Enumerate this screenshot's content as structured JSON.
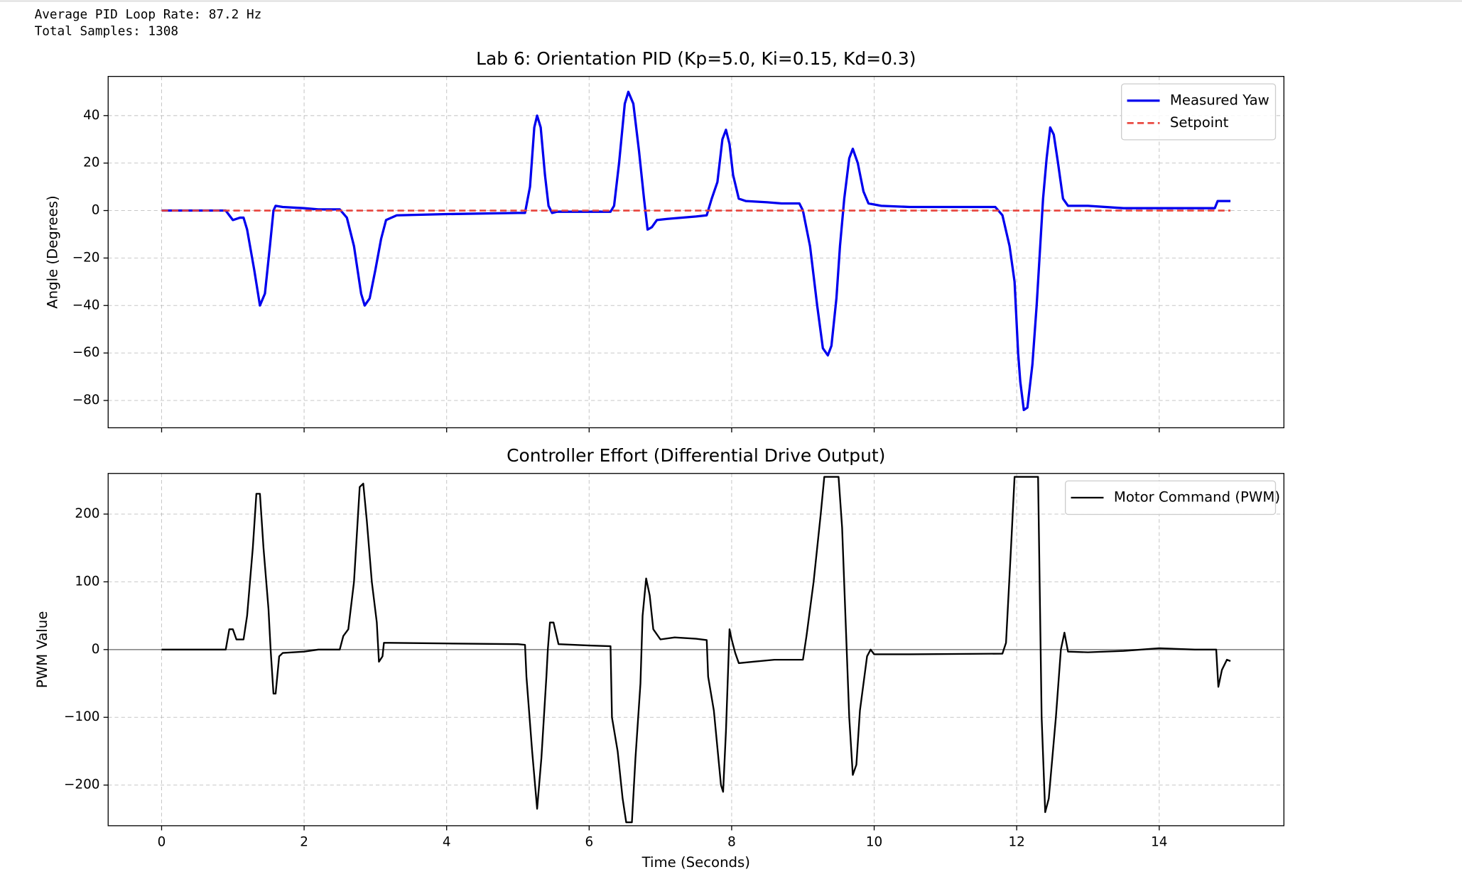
{
  "console": [
    "Average PID Loop Rate: 87.2 Hz",
    "Total Samples: 1308"
  ],
  "chart_data": [
    {
      "type": "line",
      "title": "Lab 6: Orientation PID (Kp=5.0, Ki=0.15, Kd=0.3)",
      "y_label": "Angle (Degrees)",
      "xlim": [
        -0.75,
        15.75
      ],
      "xticks": [
        0,
        2,
        4,
        6,
        8,
        10,
        12,
        14
      ],
      "show_xtick_labels": false,
      "ylim": [
        -91.5,
        56.5
      ],
      "yticks": [
        {
          "value": -80,
          "label": "−80"
        },
        {
          "value": -60,
          "label": "−60"
        },
        {
          "value": -40,
          "label": "−40"
        },
        {
          "value": -20,
          "label": "−20"
        },
        0,
        20,
        40
      ],
      "grid": true,
      "legend": "upper right",
      "series": [
        {
          "name": "Measured Yaw",
          "color": "#0000ee",
          "width": 2.5,
          "dash": false,
          "x": [
            0,
            0.9,
            0.95,
            1.0,
            1.1,
            1.15,
            1.2,
            1.3,
            1.38,
            1.45,
            1.52,
            1.57,
            1.6,
            1.7,
            2.0,
            2.2,
            2.5,
            2.6,
            2.7,
            2.8,
            2.85,
            2.92,
            3.0,
            3.08,
            3.15,
            3.3,
            4,
            5,
            5.1,
            5.17,
            5.23,
            5.27,
            5.32,
            5.38,
            5.43,
            5.48,
            5.55,
            6,
            6.3,
            6.35,
            6.42,
            6.5,
            6.55,
            6.62,
            6.7,
            6.77,
            6.82,
            6.88,
            6.95,
            7.1,
            7.5,
            7.65,
            7.72,
            7.8,
            7.87,
            7.92,
            7.97,
            8.02,
            8.1,
            8.2,
            8.5,
            8.7,
            8.95,
            9.0,
            9.1,
            9.2,
            9.28,
            9.35,
            9.4,
            9.47,
            9.52,
            9.58,
            9.65,
            9.7,
            9.77,
            9.85,
            9.92,
            10.1,
            10.5,
            11.7,
            11.8,
            11.9,
            11.97,
            12.02,
            12.05,
            12.1,
            12.15,
            12.22,
            12.28,
            12.33,
            12.37,
            12.42,
            12.47,
            12.52,
            12.58,
            12.65,
            12.72,
            13,
            13.5,
            14,
            14.5,
            14.78,
            14.82,
            14.9,
            15
          ],
          "values": [
            0,
            0,
            -2,
            -4,
            -3,
            -3,
            -8,
            -25,
            -40,
            -35,
            -15,
            0,
            2,
            1.5,
            1,
            0.5,
            0.5,
            -3,
            -15,
            -35,
            -40,
            -37,
            -25,
            -12,
            -4,
            -2,
            -1.5,
            -1,
            -1,
            10,
            35,
            40,
            35,
            15,
            2,
            -1,
            -0.5,
            -0.5,
            -0.5,
            2,
            20,
            45,
            50,
            45,
            25,
            5,
            -8,
            -7,
            -4,
            -3.5,
            -2.5,
            -2,
            5,
            12,
            30,
            34,
            28,
            15,
            5,
            4,
            3.5,
            3,
            3,
            0,
            -15,
            -40,
            -58,
            -61,
            -57,
            -37,
            -15,
            5,
            22,
            26,
            20,
            8,
            3,
            2,
            1.5,
            1.5,
            -2,
            -15,
            -30,
            -60,
            -72,
            -84,
            -83,
            -65,
            -40,
            -15,
            5,
            22,
            35,
            32,
            20,
            5,
            2,
            2,
            1,
            1,
            1,
            1,
            4,
            4,
            4
          ]
        },
        {
          "name": "Setpoint",
          "color": "#e8423a",
          "width": 2,
          "dash": true,
          "x": [
            0,
            15
          ],
          "values": [
            0,
            0
          ]
        }
      ]
    },
    {
      "type": "line",
      "title": "Controller Effort (Differential Drive Output)",
      "y_label": "PWM Value",
      "x_label": "Time (Seconds)",
      "xlim": [
        -0.75,
        15.75
      ],
      "xticks": [
        0,
        2,
        4,
        6,
        8,
        10,
        12,
        14
      ],
      "show_xtick_labels": true,
      "ylim": [
        -260,
        260
      ],
      "yticks": [
        {
          "value": -200,
          "label": "−200"
        },
        {
          "value": -100,
          "label": "−100"
        },
        0,
        100,
        200
      ],
      "grid": true,
      "legend": "upper right",
      "reference_line": 0,
      "series": [
        {
          "name": "Motor Command (PWM)",
          "color": "#000000",
          "width": 1.8,
          "dash": false,
          "x": [
            0,
            0.9,
            0.95,
            1.0,
            1.05,
            1.15,
            1.2,
            1.28,
            1.33,
            1.38,
            1.43,
            1.5,
            1.53,
            1.57,
            1.6,
            1.65,
            1.7,
            2.0,
            2.2,
            2.5,
            2.55,
            2.62,
            2.7,
            2.78,
            2.83,
            2.88,
            2.95,
            3.02,
            3.05,
            3.1,
            3.12,
            3.2,
            4,
            5,
            5.1,
            5.12,
            5.2,
            5.27,
            5.33,
            5.4,
            5.42,
            5.45,
            5.5,
            5.57,
            6,
            6.3,
            6.32,
            6.4,
            6.47,
            6.52,
            6.6,
            6.65,
            6.72,
            6.75,
            6.8,
            6.85,
            6.9,
            7.0,
            7.2,
            7.5,
            7.65,
            7.67,
            7.75,
            7.85,
            7.88,
            7.92,
            7.97,
            8.0,
            8.05,
            8.1,
            8.3,
            8.6,
            9.0,
            9.05,
            9.15,
            9.25,
            9.3,
            9.5,
            9.55,
            9.6,
            9.65,
            9.7,
            9.75,
            9.8,
            9.9,
            9.95,
            10,
            10.5,
            11.8,
            11.85,
            11.92,
            11.97,
            12.3,
            12.35,
            12.4,
            12.45,
            12.55,
            12.62,
            12.67,
            12.72,
            13,
            13.5,
            14,
            14.5,
            14.8,
            14.83,
            14.88,
            14.95,
            15
          ],
          "values": [
            0,
            0,
            30,
            30,
            15,
            15,
            50,
            150,
            230,
            230,
            150,
            60,
            0,
            -65,
            -65,
            -10,
            -5,
            -3,
            0,
            0,
            20,
            30,
            100,
            240,
            245,
            190,
            100,
            40,
            -18,
            -10,
            10,
            10,
            9,
            8,
            7,
            -40,
            -150,
            -235,
            -160,
            -40,
            0,
            40,
            40,
            8,
            6,
            5,
            -100,
            -150,
            -220,
            -255,
            -255,
            -160,
            -50,
            50,
            105,
            80,
            30,
            15,
            18,
            16,
            14,
            -40,
            -90,
            -200,
            -210,
            -120,
            30,
            15,
            -5,
            -20,
            -18,
            -15,
            -15,
            20,
            100,
            200,
            255,
            255,
            180,
            40,
            -100,
            -185,
            -170,
            -90,
            -10,
            0,
            -7,
            -7,
            -6,
            10,
            150,
            255,
            255,
            -100,
            -240,
            -220,
            -100,
            0,
            25,
            -3,
            -4,
            -2,
            2,
            0,
            0,
            -55,
            -30,
            -15,
            -17
          ]
        }
      ]
    }
  ]
}
